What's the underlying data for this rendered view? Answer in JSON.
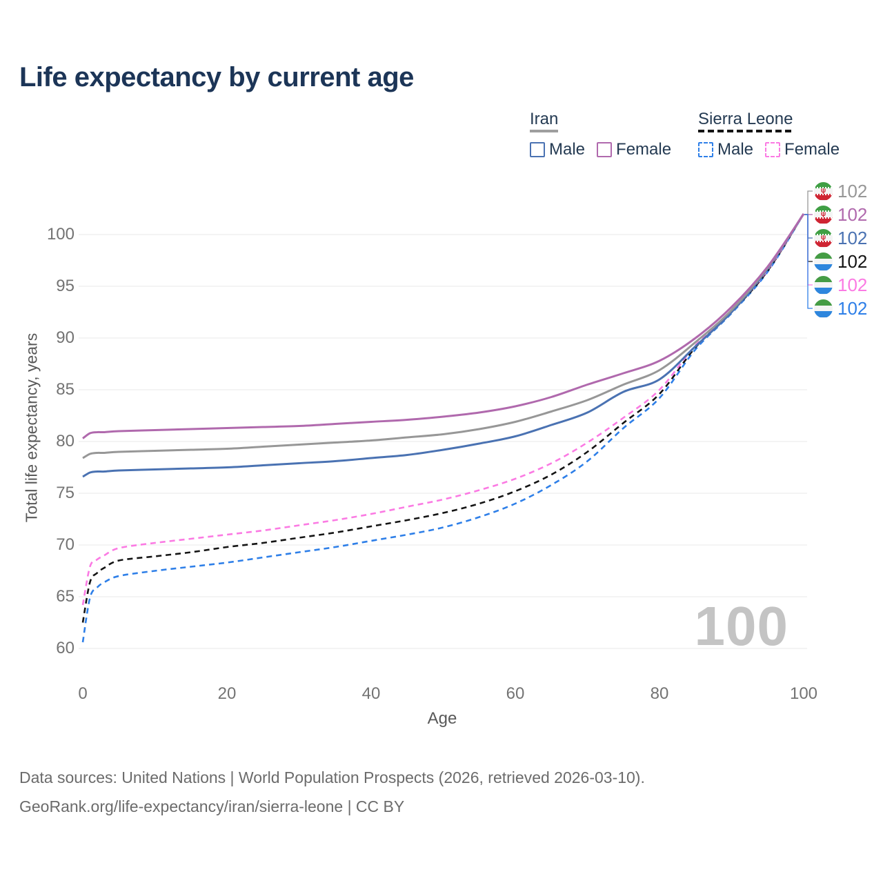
{
  "title": "Life expectancy by current age",
  "watermark": "100",
  "legend": {
    "groups": [
      {
        "key": "iran",
        "label": "Iran",
        "underline_style": "solid",
        "underline_color": "#9e9e9e",
        "items": [
          {
            "key": "iran-male",
            "label": "Male",
            "box_color": "#4a72b2",
            "box_style": "solid"
          },
          {
            "key": "iran-female",
            "label": "Female",
            "box_color": "#b069ad",
            "box_style": "solid"
          }
        ]
      },
      {
        "key": "sierra-leone",
        "label": "Sierra Leone",
        "underline_style": "dashed",
        "underline_color": "#141414",
        "items": [
          {
            "key": "sierra-leone-male",
            "label": "Male",
            "box_color": "#2e7fe8",
            "box_style": "dashed"
          },
          {
            "key": "sierra-leone-female",
            "label": "Female",
            "box_color": "#fb7ae3",
            "box_style": "dashed"
          }
        ]
      }
    ]
  },
  "chart_data": {
    "type": "line",
    "title": "Life expectancy by current age",
    "xlabel": "Age",
    "ylabel": "Total life expectancy, years",
    "xlim": [
      0,
      100
    ],
    "ylim": [
      58,
      103
    ],
    "xticks": [
      0,
      20,
      40,
      60,
      80,
      100
    ],
    "yticks": [
      60,
      65,
      70,
      75,
      80,
      85,
      90,
      95,
      100
    ],
    "grid": "horizontal",
    "legend_position": "top-right",
    "x": [
      0,
      1,
      2,
      3,
      5,
      10,
      15,
      20,
      25,
      30,
      35,
      40,
      45,
      50,
      55,
      60,
      65,
      70,
      75,
      80,
      85,
      90,
      95,
      100
    ],
    "series": [
      {
        "name": "Sierra Leone Male",
        "key": "sierra-leone-male",
        "color": "#2e7fe8",
        "dash": true,
        "values": [
          60.6,
          64.9,
          65.9,
          66.4,
          67.0,
          67.5,
          67.9,
          68.3,
          68.8,
          69.3,
          69.8,
          70.4,
          71.0,
          71.7,
          72.7,
          74.0,
          75.8,
          78.1,
          81.3,
          84.2,
          88.9,
          92.4,
          96.4,
          102
        ]
      },
      {
        "name": "Sierra Leone Both sexes",
        "key": "sierra-leone-both",
        "color": "#141414",
        "dash": true,
        "values": [
          62.5,
          66.4,
          67.3,
          67.8,
          68.5,
          68.9,
          69.3,
          69.8,
          70.2,
          70.7,
          71.2,
          71.8,
          72.4,
          73.1,
          74.0,
          75.2,
          76.8,
          79.0,
          81.8,
          84.6,
          89.1,
          92.5,
          96.5,
          102
        ]
      },
      {
        "name": "Sierra Leone Female",
        "key": "sierra-leone-female",
        "color": "#fb7ae3",
        "dash": true,
        "values": [
          64.2,
          67.9,
          68.6,
          69.0,
          69.7,
          70.2,
          70.6,
          71.0,
          71.4,
          71.9,
          72.4,
          73.0,
          73.7,
          74.4,
          75.3,
          76.4,
          77.9,
          79.9,
          82.3,
          85.0,
          89.3,
          92.6,
          96.6,
          102
        ]
      },
      {
        "name": "Iran Male",
        "key": "iran-male",
        "color": "#4a72b2",
        "dash": false,
        "values": [
          76.6,
          77.0,
          77.1,
          77.1,
          77.2,
          77.3,
          77.4,
          77.5,
          77.7,
          77.9,
          78.1,
          78.4,
          78.7,
          79.2,
          79.8,
          80.5,
          81.6,
          82.8,
          84.8,
          86.0,
          89.2,
          92.5,
          96.7,
          102
        ]
      },
      {
        "name": "Iran Both sexes",
        "key": "iran-both",
        "color": "#979797",
        "dash": false,
        "values": [
          78.4,
          78.8,
          78.9,
          78.9,
          79.0,
          79.1,
          79.2,
          79.3,
          79.5,
          79.7,
          79.9,
          80.1,
          80.4,
          80.7,
          81.2,
          81.9,
          82.9,
          84.0,
          85.5,
          86.9,
          89.6,
          92.7,
          96.8,
          102
        ]
      },
      {
        "name": "Iran Female",
        "key": "iran-female",
        "color": "#b069ad",
        "dash": false,
        "values": [
          80.3,
          80.8,
          80.9,
          80.9,
          81.0,
          81.1,
          81.2,
          81.3,
          81.4,
          81.5,
          81.7,
          81.9,
          82.1,
          82.4,
          82.8,
          83.4,
          84.3,
          85.5,
          86.6,
          87.8,
          90.0,
          93.0,
          96.9,
          102
        ]
      }
    ]
  },
  "end_labels": [
    {
      "flag": "iran",
      "series": "Iran Both sexes",
      "value": "102",
      "color": "#979797"
    },
    {
      "flag": "iran",
      "series": "Iran Female",
      "value": "102",
      "color": "#b069ad"
    },
    {
      "flag": "iran",
      "series": "Iran Male",
      "value": "102",
      "color": "#4a72b2"
    },
    {
      "flag": "sierra-leone",
      "series": "Sierra Leone Both sexes",
      "value": "102",
      "color": "#141414"
    },
    {
      "flag": "sierra-leone",
      "series": "Sierra Leone Female",
      "value": "102",
      "color": "#fb7ae3"
    },
    {
      "flag": "sierra-leone",
      "series": "Sierra Leone Male",
      "value": "102",
      "color": "#2e7fe8"
    }
  ],
  "footer": {
    "line1": "Data sources: United Nations | World Population Prospects (2026, retrieved 2026-03-10).",
    "line2": "GeoRank.org/life-expectancy/iran/sierra-leone | CC BY"
  },
  "flag_colors": {
    "iran": {
      "top": "#3f9f44",
      "mid": "#f4f4f4",
      "bottom": "#cf2533"
    },
    "sierra-leone": {
      "top": "#459c45",
      "mid": "#f4f4f4",
      "bottom": "#2e86dd"
    }
  }
}
